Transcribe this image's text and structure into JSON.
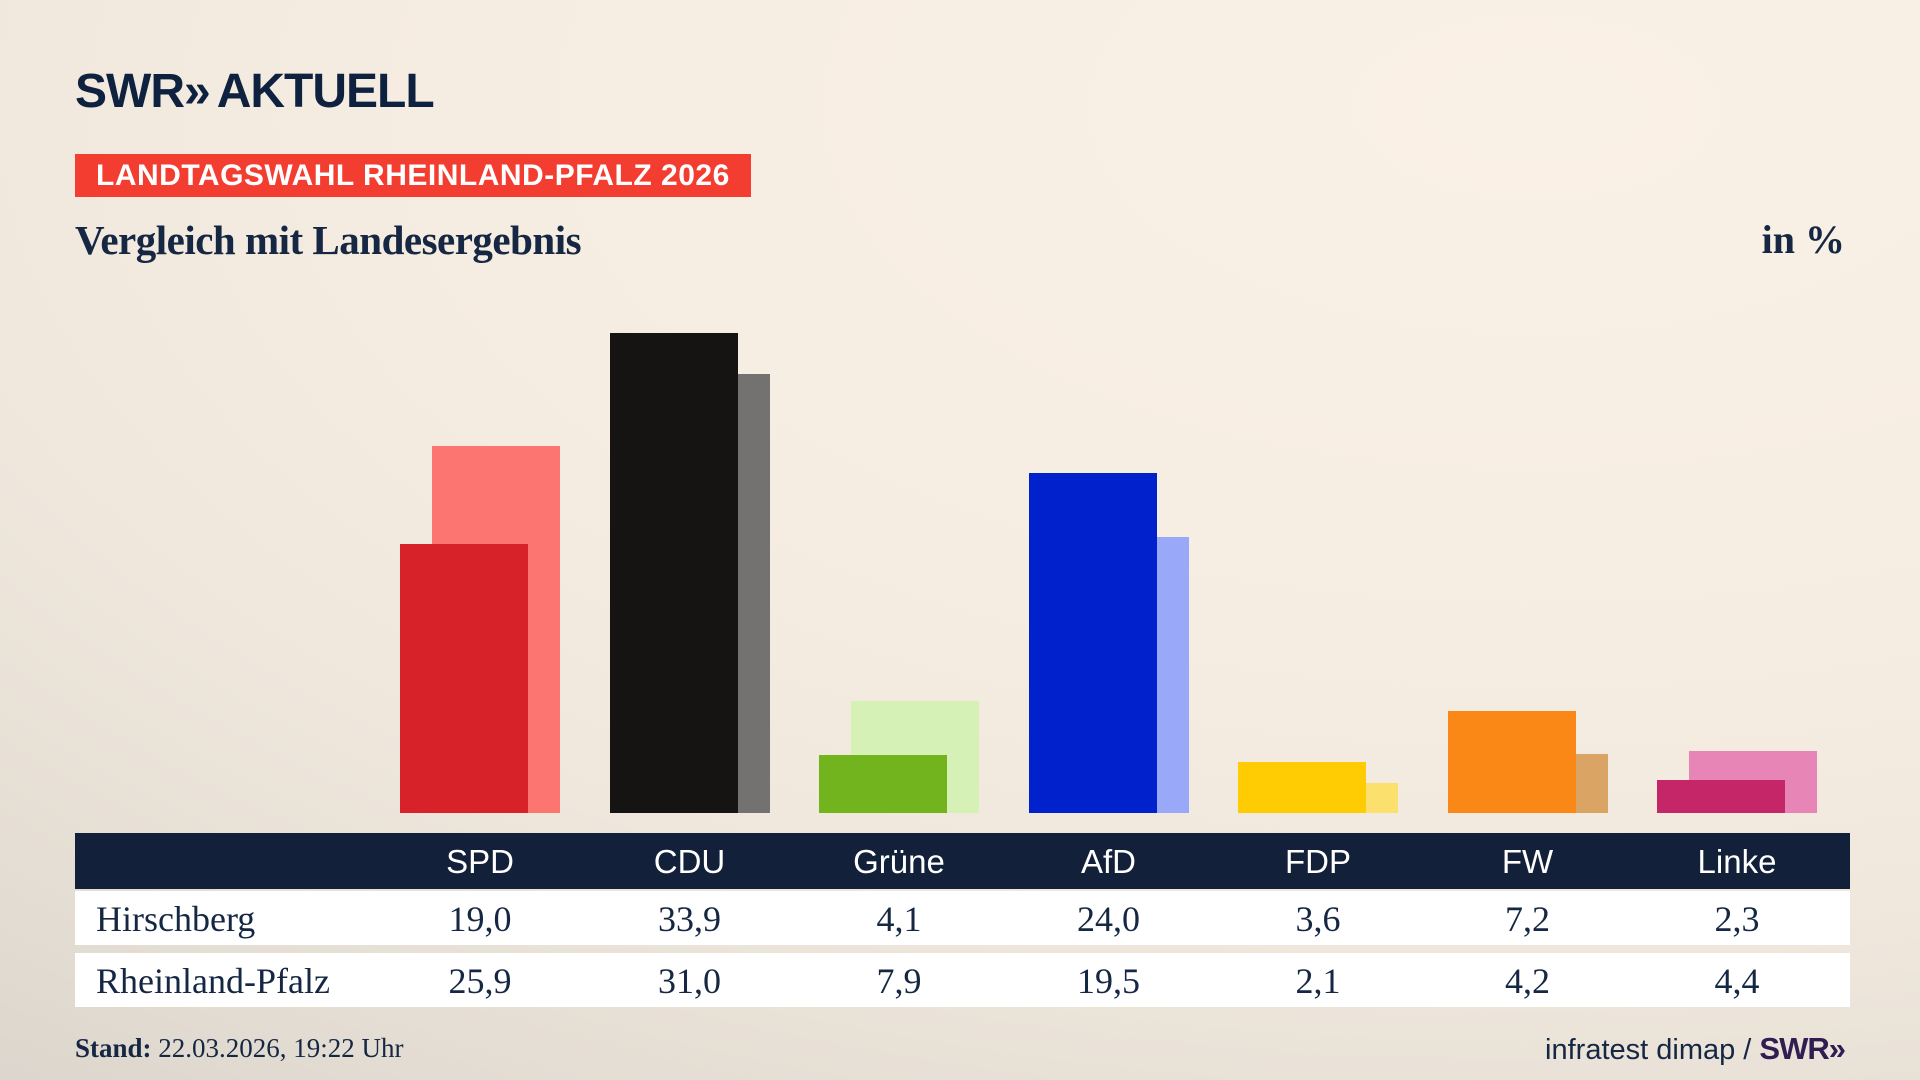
{
  "header": {
    "logo": {
      "brand": "SWR",
      "chevrons": "»",
      "word": "AKTUELL"
    },
    "badge": "LANDTAGSWAHL RHEINLAND-PFALZ 2026",
    "title": "Vergleich mit Landesergebnis",
    "unit_label": "in %"
  },
  "chart_data": {
    "type": "bar",
    "title": "Vergleich mit Landesergebnis",
    "unit": "%",
    "categories": [
      "SPD",
      "CDU",
      "Grüne",
      "AfD",
      "FDP",
      "FW",
      "Linke"
    ],
    "series": [
      {
        "name": "Hirschberg",
        "role": "front",
        "values": [
          19.0,
          33.9,
          4.1,
          24.0,
          3.6,
          7.2,
          2.3
        ],
        "colors": [
          "#d7222a",
          "#161412",
          "#72b41e",
          "#0121cd",
          "#ffcc03",
          "#fa8817",
          "#c42668"
        ]
      },
      {
        "name": "Rheinland-Pfalz",
        "role": "back",
        "values": [
          25.9,
          31.0,
          7.9,
          19.5,
          2.1,
          4.2,
          4.4
        ],
        "colors": [
          "#fc7570",
          "#747271",
          "#d5f1b5",
          "#9aa8f9",
          "#fce06e",
          "#daa465",
          "#e785b6"
        ]
      }
    ],
    "ylim": [
      0,
      34
    ],
    "grid": false,
    "legend": "table-below"
  },
  "table": {
    "columns": [
      "SPD",
      "CDU",
      "Grüne",
      "AfD",
      "FDP",
      "FW",
      "Linke"
    ],
    "rows": [
      {
        "label": "Hirschberg",
        "values": [
          "19,0",
          "33,9",
          "4,1",
          "24,0",
          "3,6",
          "7,2",
          "2,3"
        ]
      },
      {
        "label": "Rheinland-Pfalz",
        "values": [
          "25,9",
          "31,0",
          "7,9",
          "19,5",
          "2,1",
          "4,2",
          "4,4"
        ]
      }
    ]
  },
  "footer": {
    "stand_label": "Stand:",
    "stand_value": " 22.03.2026, 19:22 Uhr",
    "source_prefix": "infratest dimap / ",
    "source_brand": "SWR»"
  },
  "colors": {
    "badge_bg": "#f33d30",
    "navy_text": "#152743",
    "table_header_bg": "#13203a",
    "source_brand_color": "#311d52",
    "logo_color": "#0e2240"
  }
}
